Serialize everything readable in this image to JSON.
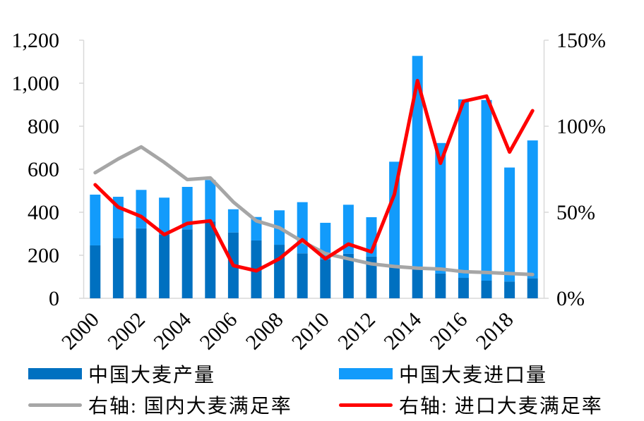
{
  "chart_data": {
    "type": "bar",
    "subtype": "stacked-bars-with-lines-combo",
    "title": "",
    "xlabel": "",
    "ylabel_left": "",
    "ylabel_right": "",
    "categories": [
      "2000",
      "2001",
      "2002",
      "2003",
      "2004",
      "2005",
      "2006",
      "2007",
      "2008",
      "2009",
      "2010",
      "2011",
      "2012",
      "2013",
      "2014",
      "2015",
      "2016",
      "2017",
      "2018",
      "2019"
    ],
    "x_tick_labels": [
      "2000",
      "2002",
      "2004",
      "2006",
      "2008",
      "2010",
      "2012",
      "2014",
      "2016",
      "2018"
    ],
    "left_axis": {
      "min": 0,
      "max": 1200,
      "tick_values": [
        0,
        200,
        400,
        600,
        800,
        1000,
        1200
      ],
      "tick_labels": [
        "0",
        "200",
        "400",
        "600",
        "800",
        "1,000",
        "1,200"
      ]
    },
    "right_axis": {
      "min": 0,
      "max": 150,
      "tick_values": [
        0,
        50,
        100,
        150
      ],
      "tick_labels": [
        "0%",
        "50%",
        "100%",
        "150%"
      ]
    },
    "grid": "off",
    "legend_position": "bottom",
    "series": [
      {
        "name": "中国大麦产量",
        "type": "bar",
        "stack": "total",
        "axis": "left",
        "color": "#0070C0",
        "values": [
          246,
          280,
          325,
          295,
          320,
          357,
          306,
          269,
          249,
          209,
          181,
          207,
          194,
          154,
          140,
          115,
          95,
          82,
          78,
          93
        ]
      },
      {
        "name": "中国大麦进口量",
        "type": "bar",
        "stack": "total",
        "axis": "left",
        "color": "#129BFB",
        "values": [
          236,
          192,
          179,
          173,
          198,
          193,
          108,
          109,
          160,
          238,
          170,
          228,
          183,
          481,
          987,
          607,
          830,
          840,
          530,
          641
        ]
      },
      {
        "name": "右轴: 国内大麦满足率",
        "type": "line",
        "axis": "right",
        "color": "#A6A6A6",
        "values": [
          73,
          81,
          88,
          79,
          69,
          70,
          56,
          45,
          41,
          33,
          26,
          23,
          20,
          18.5,
          17.5,
          17,
          15.5,
          15,
          14.4,
          13.8
        ]
      },
      {
        "name": "右轴: 进口大麦满足率",
        "type": "line",
        "axis": "right",
        "color": "#FF0000",
        "values": [
          66,
          53,
          47.5,
          37,
          43.5,
          45,
          19,
          16,
          23,
          34,
          23,
          31.5,
          27,
          60.5,
          126.5,
          78.5,
          114.5,
          117.5,
          85,
          109
        ]
      }
    ]
  },
  "legend": {
    "items": [
      {
        "label": "中国大麦产量",
        "shape": "bar",
        "color": "#0070C0"
      },
      {
        "label": "中国大麦进口量",
        "shape": "bar",
        "color": "#129BFB"
      },
      {
        "label": "右轴: 国内大麦满足率",
        "shape": "line",
        "color": "#A6A6A6"
      },
      {
        "label": "右轴: 进口大麦满足率",
        "shape": "line",
        "color": "#FF0000"
      }
    ]
  },
  "colors": {
    "production_bar": "#0070C0",
    "import_bar": "#129BFB",
    "domestic_rate_line": "#A6A6A6",
    "import_rate_line": "#FF0000",
    "axis": "#D9D9D9",
    "text": "#000000",
    "background": "#FFFFFF"
  }
}
